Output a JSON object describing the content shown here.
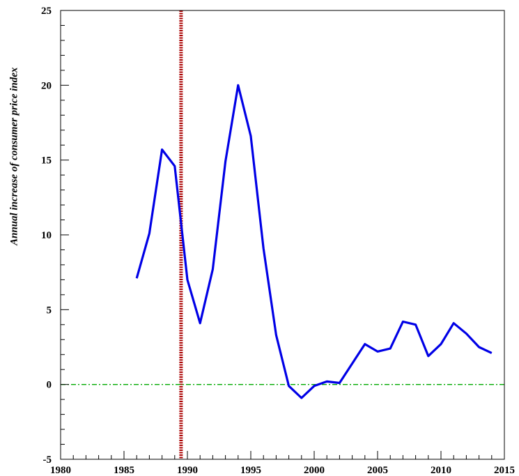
{
  "chart_data": {
    "type": "line",
    "title": "",
    "xlabel": "",
    "ylabel": "Annual increase of consumer price index",
    "xlim": [
      1980,
      2015
    ],
    "ylim": [
      -5,
      25
    ],
    "x_ticks": [
      1980,
      1985,
      1990,
      1995,
      2000,
      2005,
      2010,
      2015
    ],
    "y_ticks": [
      -5,
      0,
      5,
      10,
      15,
      20,
      25
    ],
    "grid": false,
    "series": [
      {
        "color": "#0000e6",
        "x": [
          1986,
          1987,
          1988,
          1989,
          1990,
          1991,
          1992,
          1993,
          1994,
          1995,
          1996,
          1997,
          1998,
          1999,
          2000,
          2001,
          2002,
          2003,
          2004,
          2005,
          2006,
          2007,
          2008,
          2009,
          2010,
          2011,
          2012,
          2013,
          2014
        ],
        "y": [
          7.1,
          10.1,
          15.7,
          14.6,
          7.0,
          4.1,
          7.7,
          14.9,
          20.0,
          16.6,
          9.1,
          3.3,
          -0.1,
          -0.9,
          -0.1,
          0.2,
          0.1,
          1.4,
          2.7,
          2.2,
          2.4,
          4.2,
          4.0,
          1.9,
          2.7,
          4.1,
          3.4,
          2.5,
          2.1
        ]
      }
    ],
    "reference_lines": [
      {
        "orientation": "vertical",
        "x": 1989.5,
        "color": "#aa0000",
        "style": "dotted"
      },
      {
        "orientation": "horizontal",
        "y": 0,
        "color": "#00aa00",
        "style": "dash-dot"
      }
    ],
    "x_tick_labels": [
      "1980",
      "1985",
      "1990",
      "1995",
      "2000",
      "2005",
      "2010",
      "2015"
    ],
    "y_tick_labels": [
      "-5",
      "0",
      "5",
      "10",
      "15",
      "20",
      "25"
    ]
  }
}
